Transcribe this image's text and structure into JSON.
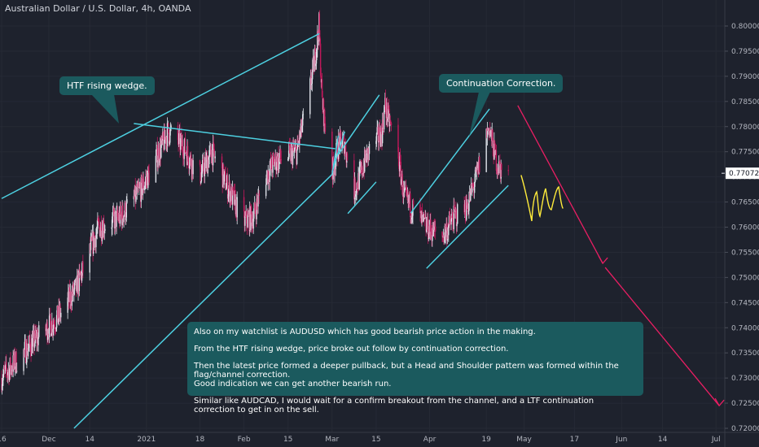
{
  "title": "Australian Dollar / U.S. Dollar, 4h, OANDA",
  "callouts": {
    "wedge": "HTF rising wedge.",
    "correction": "Continuation Correction."
  },
  "note": [
    "Also on my watchlist is AUDUSD which has good bearish price action in the making.",
    "From the HTF rising wedge, price broke out follow by continuation correction.",
    "Then the latest price formed a deeper pullback, but a Head and Shoulder pattern was formed within the flag/channel correction.",
    " Good indication we can get another bearish run.",
    "Similar like AUDCAD, I would wait for a confirm breakout from the channel, and a LTF continuation correction to get in on the sell."
  ],
  "colors": {
    "background": "#1e222d",
    "up_candle": "#e0e3eb",
    "down_candle": "#c2185b",
    "trendline": "#4dd0e1",
    "projection_arrow": "#e91e63",
    "sketch": "#ffeb3b",
    "callout_bg": "#1b5a5e",
    "price_marker_bg": "#ffffff"
  },
  "chart_data": {
    "type": "candlestick",
    "symbol": "Australian Dollar / U.S. Dollar",
    "timeframe": "4h",
    "source": "OANDA",
    "current_price": 0.77072,
    "current_price_label": "0.77072",
    "y_ticks": [
      "0.80000",
      "0.79500",
      "0.79000",
      "0.78500",
      "0.78000",
      "0.77500",
      "0.77000",
      "0.76500",
      "0.76000",
      "0.75500",
      "0.75000",
      "0.74500",
      "0.74000",
      "0.73500",
      "0.73000",
      "0.72500",
      "0.72000"
    ],
    "ylim": [
      0.7196,
      0.8057
    ],
    "x_ticks": [
      "16",
      "Dec",
      "14",
      "2021",
      "18",
      "Feb",
      "15",
      "Mar",
      "15",
      "Apr",
      "19",
      "May",
      "17",
      "Jun",
      "14",
      "Jul"
    ],
    "price_path": [
      [
        "2020-11-16",
        0.73
      ],
      [
        "2020-11-26",
        0.737
      ],
      [
        "2020-12-04",
        0.742
      ],
      [
        "2020-12-10",
        0.748
      ],
      [
        "2020-12-17",
        0.76
      ],
      [
        "2020-12-24",
        0.762
      ],
      [
        "2020-12-31",
        0.768
      ],
      [
        "2021-01-06",
        0.776
      ],
      [
        "2021-01-08",
        0.779
      ],
      [
        "2021-01-13",
        0.776
      ],
      [
        "2021-01-18",
        0.77
      ],
      [
        "2021-01-22",
        0.775
      ],
      [
        "2021-01-27",
        0.768
      ],
      [
        "2021-02-01",
        0.761
      ],
      [
        "2021-02-04",
        0.762
      ],
      [
        "2021-02-08",
        0.77
      ],
      [
        "2021-02-11",
        0.773
      ],
      [
        "2021-02-18",
        0.775
      ],
      [
        "2021-02-22",
        0.787
      ],
      [
        "2021-02-24",
        0.795
      ],
      [
        "2021-02-25",
        0.8
      ],
      [
        "2021-02-26",
        0.785
      ],
      [
        "2021-03-01",
        0.77
      ],
      [
        "2021-03-03",
        0.776
      ],
      [
        "2021-03-05",
        0.777
      ],
      [
        "2021-03-08",
        0.767
      ],
      [
        "2021-03-10",
        0.77
      ],
      [
        "2021-03-12",
        0.774
      ],
      [
        "2021-03-17",
        0.779
      ],
      [
        "2021-03-18",
        0.784
      ],
      [
        "2021-03-22",
        0.775
      ],
      [
        "2021-03-24",
        0.766
      ],
      [
        "2021-03-31",
        0.76
      ],
      [
        "2021-04-05",
        0.758
      ],
      [
        "2021-04-09",
        0.762
      ],
      [
        "2021-04-13",
        0.764
      ],
      [
        "2021-04-16",
        0.77
      ],
      [
        "2021-04-19",
        0.778
      ],
      [
        "2021-04-20",
        0.78
      ],
      [
        "2021-04-22",
        0.774
      ],
      [
        "2021-04-23",
        0.772
      ],
      [
        "2021-04-26",
        0.7707
      ]
    ],
    "trendlines": [
      {
        "name": "wedge-upper",
        "from": [
          "2020-11-16",
          0.7657
        ],
        "to": [
          "2021-02-25",
          0.7985
        ]
      },
      {
        "name": "wedge-lower",
        "from": [
          "2020-12-09",
          0.72
        ],
        "to": [
          "2021-03-01",
          0.7705
        ]
      },
      {
        "name": "flag-1",
        "from": [
          "2021-03-01",
          0.7705
        ],
        "to": [
          "2021-03-03",
          0.7782
        ]
      },
      {
        "name": "flag-1b",
        "from": [
          "2021-03-01",
          0.771
        ],
        "to": [
          "2021-03-05",
          0.779
        ]
      },
      {
        "name": "flag-2",
        "from": [
          "2021-03-03",
          0.7745
        ],
        "to": [
          "2021-03-16",
          0.7863
        ]
      },
      {
        "name": "flag-2b",
        "from": [
          "2021-03-06",
          0.7627
        ],
        "to": [
          "2021-03-15",
          0.769
        ]
      },
      {
        "name": "channel-upper",
        "from": [
          "2021-03-26",
          0.7628
        ],
        "to": [
          "2021-04-20",
          0.7835
        ]
      },
      {
        "name": "channel-lower",
        "from": [
          "2021-03-31",
          0.7518
        ],
        "to": [
          "2021-04-26",
          0.7683
        ]
      },
      {
        "name": "wedge-callout-pointer",
        "from": [
          "2020-12-28",
          0.7806
        ],
        "to": [
          "2021-03-02",
          0.7756
        ]
      }
    ],
    "projection": {
      "from": [
        "2021-04-29",
        0.7842
      ],
      "via": [
        "2021-05-26",
        0.7528
      ],
      "to": [
        "2021-07-02",
        0.7245
      ]
    }
  }
}
